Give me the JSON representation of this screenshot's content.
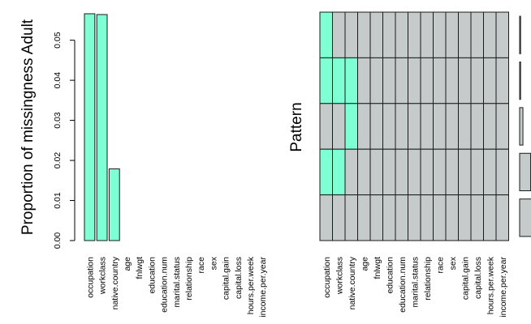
{
  "chart_data": [
    {
      "type": "bar",
      "ylabel": "Proportion of missingness Adult",
      "categories": [
        "occupation",
        "workclass",
        "native.country",
        "age",
        "fnlwgt",
        "education",
        "education.num",
        "marital.status",
        "relationship",
        "race",
        "sex",
        "capital.gain",
        "capital.loss",
        "hours.per.week",
        "income.per.year"
      ],
      "values": [
        0.0566,
        0.0564,
        0.0179,
        0,
        0,
        0,
        0,
        0,
        0,
        0,
        0,
        0,
        0,
        0,
        0
      ],
      "ylim": [
        0,
        0.057
      ],
      "yticks": [
        "0.00",
        "0.01",
        "0.02",
        "0.03",
        "0.04",
        "0.05"
      ],
      "grid": false
    },
    {
      "type": "heatmap",
      "ylabel": "Pattern",
      "categories": [
        "occupation",
        "workclass",
        "native.country",
        "age",
        "fnlwgt",
        "education",
        "education.num",
        "marital.status",
        "relationship",
        "race",
        "sex",
        "capital.gain",
        "capital.loss",
        "hours.per.week",
        "income.per.year"
      ],
      "patterns": [
        [
          1,
          0,
          0,
          0,
          0,
          0,
          0,
          0,
          0,
          0,
          0,
          0,
          0,
          0,
          0
        ],
        [
          1,
          1,
          1,
          0,
          0,
          0,
          0,
          0,
          0,
          0,
          0,
          0,
          0,
          0,
          0
        ],
        [
          0,
          0,
          1,
          0,
          0,
          0,
          0,
          0,
          0,
          0,
          0,
          0,
          0,
          0,
          0
        ],
        [
          1,
          1,
          0,
          0,
          0,
          0,
          0,
          0,
          0,
          0,
          0,
          0,
          0,
          0,
          0
        ],
        [
          0,
          0,
          0,
          0,
          0,
          0,
          0,
          0,
          0,
          0,
          0,
          0,
          0,
          0,
          0
        ]
      ],
      "pattern_proportions": [
        0.0002,
        0.0009,
        0.0163,
        0.0547,
        0.9266
      ]
    }
  ],
  "colors": {
    "missing": "#7fffd4",
    "observed": "#c5cbcb",
    "stroke": "#1a1a1a"
  }
}
